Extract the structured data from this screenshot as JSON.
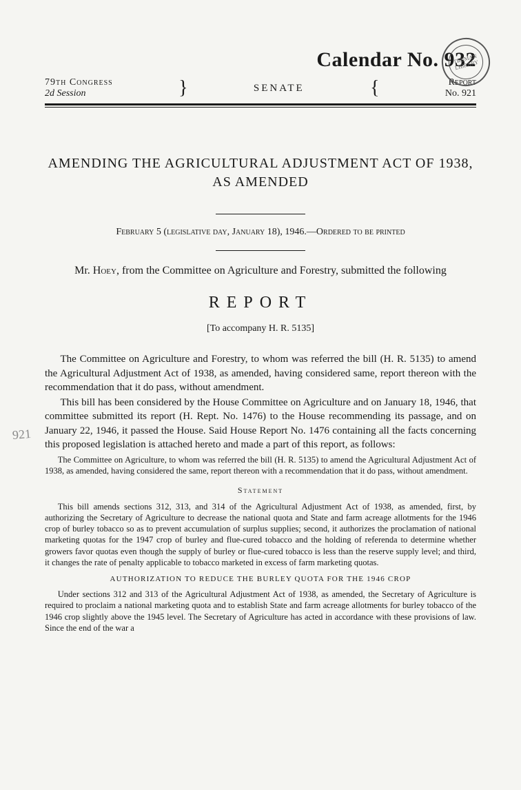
{
  "stamp": "TRUMAN LIBRARY",
  "calendar": "Calendar No. 932",
  "header": {
    "congress": "79th Congress",
    "session": "2d Session",
    "chamber": "SENATE",
    "report_label": "Report",
    "report_no": "No. 921"
  },
  "title": "AMENDING THE AGRICULTURAL ADJUSTMENT ACT OF 1938, AS AMENDED",
  "date_line": "February 5 (legislative day, January 18), 1946.—Ordered to be printed",
  "submitter_prefix": "Mr. ",
  "submitter_name": "Hoey",
  "submitter_suffix": ", from the Committee on Agriculture and Forestry, submitted the following",
  "report_heading": "REPORT",
  "accompany": "[To accompany H. R. 5135]",
  "para1": "The Committee on Agriculture and Forestry, to whom was referred the bill (H. R. 5135) to amend the Agricultural Adjustment Act of 1938, as amended, having considered same, report thereon with the recommendation that it do pass, without amendment.",
  "para2": "This bill has been considered by the House Committee on Agriculture and on January 18, 1946, that committee submitted its report (H. Rept. No. 1476) to the House recommending its passage, and on January 22, 1946, it passed the House. Said House Report No. 1476 containing all the facts concerning this proposed legislation is attached hereto and made a part of this report, as follows:",
  "small_para1": "The Committee on Agriculture, to whom was referred the bill (H. R. 5135) to amend the Agricultural Adjustment Act of 1938, as amended, having considered the same, report thereon with a recommendation that it do pass, without amendment.",
  "statement_heading": "Statement",
  "small_para2": "This bill amends sections 312, 313, and 314 of the Agricultural Adjustment Act of 1938, as amended, first, by authorizing the Secretary of Agriculture to decrease the national quota and State and farm acreage allotments for the 1946 crop of burley tobacco so as to prevent accumulation of surplus supplies; second, it authorizes the proclamation of national marketing quotas for the 1947 crop of burley and flue-cured tobacco and the holding of referenda to determine whether growers favor quotas even though the supply of burley or flue-cured tobacco is less than the reserve supply level; and third, it changes the rate of penalty applicable to tobacco marketed in excess of farm marketing quotas.",
  "sub_heading": "AUTHORIZATION TO REDUCE THE BURLEY QUOTA FOR THE 1946 CROP",
  "small_para3": "Under sections 312 and 313 of the Agricultural Adjustment Act of 1938, as amended, the Secretary of Agriculture is required to proclaim a national marketing quota and to establish State and farm acreage allotments for burley tobacco of the 1946 crop slightly above the 1945 level. The Secretary of Agriculture has acted in accordance with these provisions of law. Since the end of the war a",
  "margin_note": "921"
}
